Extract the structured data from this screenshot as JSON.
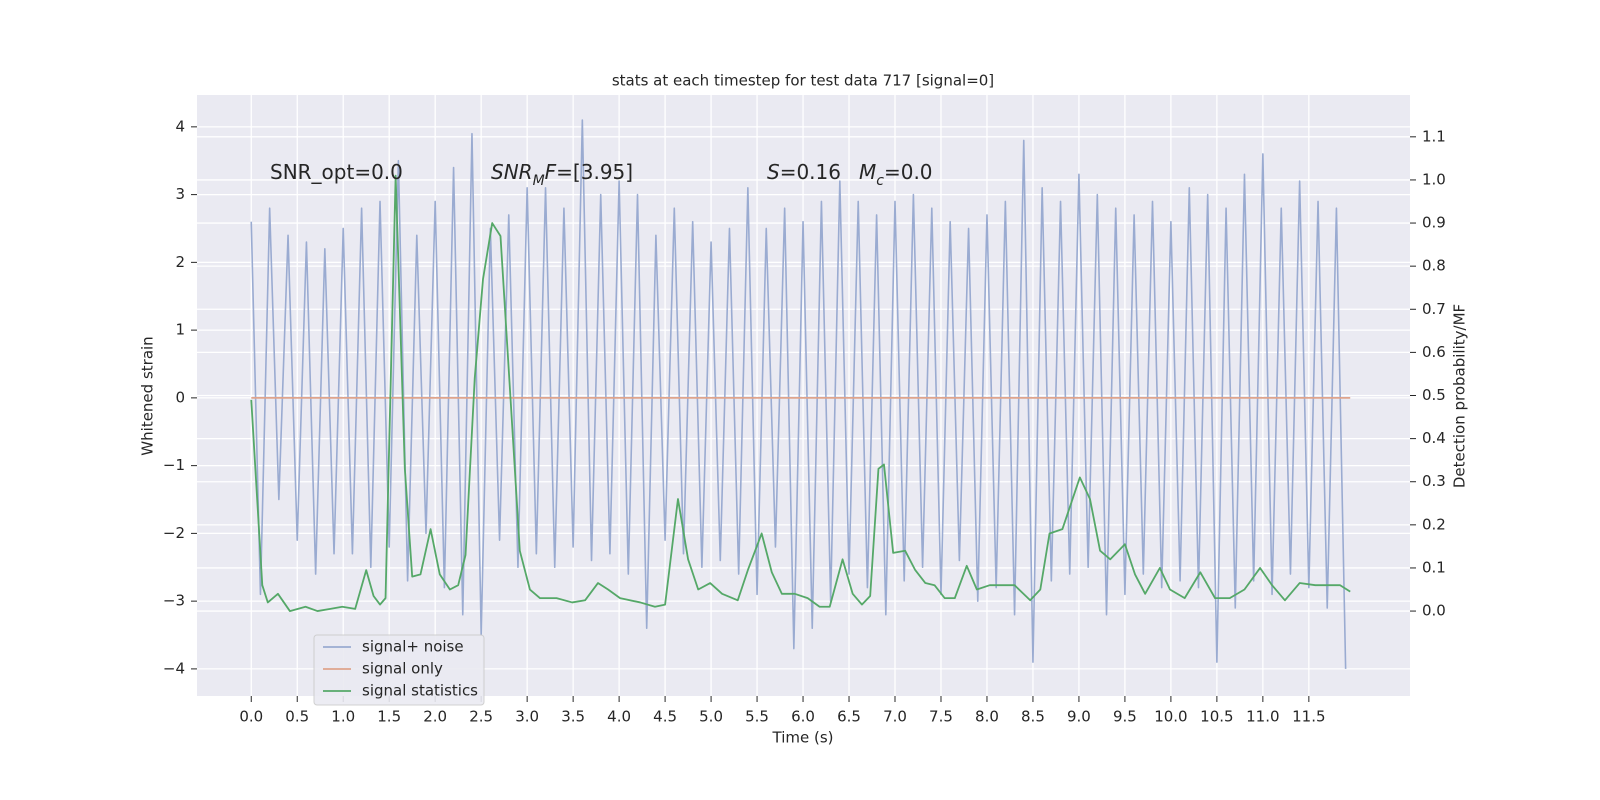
{
  "chart_data": {
    "type": "line",
    "title": "stats at each timestep for test data 717 [signal=0]",
    "xlabel": "Time (s)",
    "ylabel": "Whitened strain",
    "y2label": "Detection probability/MF",
    "xlim": [
      -0.59,
      12.6
    ],
    "ylim": [
      -4.4,
      4.47
    ],
    "y2lim": [
      -0.197,
      1.197
    ],
    "xticks": [
      {
        "value": 0,
        "label": "0.0"
      },
      0.5,
      {
        "value": 1,
        "label": "1.0"
      },
      1.5,
      {
        "value": 2,
        "label": "2.0"
      },
      2.5,
      {
        "value": 3,
        "label": "3.0"
      },
      3.5,
      {
        "value": 4,
        "label": "4.0"
      },
      4.5,
      {
        "value": 5,
        "label": "5.0"
      },
      5.5,
      {
        "value": 6,
        "label": "6.0"
      },
      6.5,
      {
        "value": 7,
        "label": "7.0"
      },
      7.5,
      {
        "value": 8,
        "label": "8.0"
      },
      8.5,
      {
        "value": 9,
        "label": "9.0"
      },
      9.5,
      {
        "value": 10,
        "label": "10.0"
      },
      10.5,
      {
        "value": 11,
        "label": "11.0"
      },
      11.5
    ],
    "yticks": [
      {
        "value": -4,
        "label": "−4"
      },
      {
        "value": -3,
        "label": "−3"
      },
      {
        "value": -2,
        "label": "−2"
      },
      {
        "value": -1,
        "label": "−1"
      },
      0,
      1,
      2,
      3,
      4
    ],
    "y2ticks": [
      {
        "value": 0,
        "label": "0.0"
      },
      0.1,
      0.2,
      0.3,
      0.4,
      0.5,
      0.6,
      0.7,
      0.8,
      0.9,
      {
        "value": 1,
        "label": "1.0"
      },
      1.1
    ],
    "grid": true,
    "legend": "lower left",
    "annotations": [
      [
        {
          "text": "SNR_opt=0.0",
          "style": "normal"
        }
      ],
      [
        {
          "text": "SNR",
          "style": "italic"
        },
        {
          "text": "M",
          "style": "italic-sub"
        },
        {
          "text": "F",
          "style": "italic"
        },
        {
          "text": "=[3.95]",
          "style": "normal"
        }
      ],
      [
        {
          "text": "S",
          "style": "italic"
        },
        {
          "text": "=0.16",
          "style": "normal"
        }
      ],
      [
        {
          "text": "M",
          "style": "italic"
        },
        {
          "text": "c",
          "style": "italic-sub"
        },
        {
          "text": "=0.0",
          "style": "normal"
        }
      ]
    ],
    "series": [
      {
        "name": "signal+ noise",
        "color": "#9aabd1",
        "x": [
          0.0,
          0.1,
          0.2,
          0.3,
          0.4,
          0.5,
          0.6,
          0.7,
          0.8,
          0.9,
          1.0,
          1.1,
          1.2,
          1.3,
          1.4,
          1.5,
          1.6,
          1.7,
          1.8,
          1.9,
          2.0,
          2.1,
          2.2,
          2.3,
          2.4,
          2.5,
          2.6,
          2.7,
          2.8,
          2.9,
          3.0,
          3.1,
          3.2,
          3.3,
          3.4,
          3.5,
          3.6,
          3.7,
          3.8,
          3.9,
          4.0,
          4.1,
          4.2,
          4.3,
          4.4,
          4.5,
          4.6,
          4.7,
          4.8,
          4.9,
          5.0,
          5.1,
          5.2,
          5.3,
          5.4,
          5.5,
          5.6,
          5.7,
          5.8,
          5.9,
          6.0,
          6.1,
          6.2,
          6.3,
          6.4,
          6.5,
          6.6,
          6.7,
          6.8,
          6.9,
          7.0,
          7.1,
          7.2,
          7.3,
          7.4,
          7.5,
          7.6,
          7.7,
          7.8,
          7.9,
          8.0,
          8.1,
          8.2,
          8.3,
          8.4,
          8.5,
          8.6,
          8.7,
          8.8,
          8.9,
          9.0,
          9.1,
          9.2,
          9.3,
          9.4,
          9.5,
          9.6,
          9.7,
          9.8,
          9.9,
          10.0,
          10.1,
          10.2,
          10.3,
          10.4,
          10.5,
          10.6,
          10.7,
          10.8,
          10.9,
          11.0,
          11.1,
          11.2,
          11.3,
          11.4,
          11.5,
          11.6,
          11.7,
          11.8,
          11.9
        ],
        "values": [
          2.6,
          -2.9,
          2.8,
          -1.5,
          2.4,
          -2.1,
          2.3,
          -2.6,
          2.2,
          -2.3,
          2.5,
          -2.3,
          2.8,
          -2.5,
          2.9,
          -2.2,
          3.5,
          -2.7,
          2.4,
          -2.0,
          2.9,
          -2.8,
          3.4,
          -3.2,
          3.9,
          -3.5,
          2.5,
          -2.1,
          2.7,
          -2.5,
          3.1,
          -2.3,
          3.1,
          -2.5,
          2.8,
          -2.2,
          4.1,
          -2.4,
          3.0,
          -2.3,
          3.2,
          -2.6,
          3.0,
          -3.4,
          2.4,
          -2.1,
          2.8,
          -2.3,
          2.6,
          -2.5,
          2.3,
          -2.4,
          2.5,
          -2.6,
          3.1,
          -2.9,
          2.5,
          -2.2,
          2.8,
          -3.7,
          2.6,
          -3.4,
          2.9,
          -3.0,
          3.2,
          -2.6,
          2.9,
          -2.8,
          2.7,
          -3.2,
          2.9,
          -2.7,
          3.0,
          -2.5,
          2.8,
          -2.9,
          2.6,
          -2.4,
          2.5,
          -3.0,
          2.7,
          -2.8,
          2.9,
          -3.2,
          3.8,
          -3.9,
          3.1,
          -2.7,
          2.9,
          -2.6,
          3.3,
          -2.5,
          3.0,
          -3.2,
          2.8,
          -2.9,
          2.7,
          -2.6,
          2.9,
          -2.8,
          2.6,
          -2.7,
          3.1,
          -2.8,
          3.0,
          -3.9,
          2.8,
          -3.1,
          3.3,
          -2.7,
          3.6,
          -2.9,
          2.8,
          -2.6,
          3.2,
          -2.8,
          2.9,
          -3.1,
          2.8,
          -4.0
        ]
      },
      {
        "name": "signal only",
        "color": "#dfa48c",
        "x": [
          0.0,
          11.95
        ],
        "values": [
          0,
          0
        ]
      },
      {
        "name": "signal statistics",
        "color": "#55a868",
        "axis": "y2",
        "x": [
          0.0,
          0.12,
          0.18,
          0.29,
          0.42,
          0.59,
          0.72,
          0.86,
          0.99,
          1.13,
          1.25,
          1.33,
          1.4,
          1.46,
          1.57,
          1.67,
          1.75,
          1.84,
          1.95,
          2.05,
          2.16,
          2.25,
          2.33,
          2.43,
          2.52,
          2.62,
          2.71,
          2.82,
          2.92,
          3.03,
          3.14,
          3.32,
          3.49,
          3.63,
          3.77,
          3.88,
          4.01,
          4.23,
          4.39,
          4.5,
          4.64,
          4.75,
          4.86,
          4.99,
          5.12,
          5.29,
          5.4,
          5.55,
          5.66,
          5.77,
          5.91,
          6.05,
          6.18,
          6.29,
          6.43,
          6.54,
          6.64,
          6.73,
          6.82,
          6.88,
          6.98,
          7.11,
          7.22,
          7.33,
          7.43,
          7.54,
          7.65,
          7.78,
          7.89,
          8.03,
          8.14,
          8.3,
          8.47,
          8.58,
          8.68,
          8.82,
          9.01,
          9.12,
          9.23,
          9.34,
          9.5,
          9.61,
          9.72,
          9.88,
          9.99,
          10.15,
          10.32,
          10.48,
          10.64,
          10.8,
          10.97,
          11.1,
          11.24,
          11.4,
          11.57,
          11.84,
          11.95
        ],
        "values": [
          0.49,
          0.06,
          0.02,
          0.04,
          0.0,
          0.01,
          0.0,
          0.005,
          0.01,
          0.005,
          0.095,
          0.035,
          0.015,
          0.03,
          1.01,
          0.33,
          0.08,
          0.085,
          0.19,
          0.085,
          0.05,
          0.06,
          0.13,
          0.54,
          0.77,
          0.9,
          0.87,
          0.49,
          0.14,
          0.05,
          0.03,
          0.03,
          0.02,
          0.025,
          0.065,
          0.05,
          0.03,
          0.02,
          0.01,
          0.015,
          0.26,
          0.12,
          0.05,
          0.065,
          0.04,
          0.025,
          0.095,
          0.18,
          0.09,
          0.04,
          0.04,
          0.03,
          0.01,
          0.01,
          0.12,
          0.04,
          0.015,
          0.035,
          0.33,
          0.34,
          0.135,
          0.14,
          0.095,
          0.065,
          0.06,
          0.03,
          0.03,
          0.105,
          0.05,
          0.06,
          0.06,
          0.06,
          0.025,
          0.05,
          0.18,
          0.19,
          0.31,
          0.26,
          0.14,
          0.12,
          0.155,
          0.085,
          0.04,
          0.1,
          0.05,
          0.03,
          0.09,
          0.03,
          0.03,
          0.05,
          0.1,
          0.06,
          0.025,
          0.065,
          0.06,
          0.06,
          0.045
        ]
      }
    ]
  }
}
